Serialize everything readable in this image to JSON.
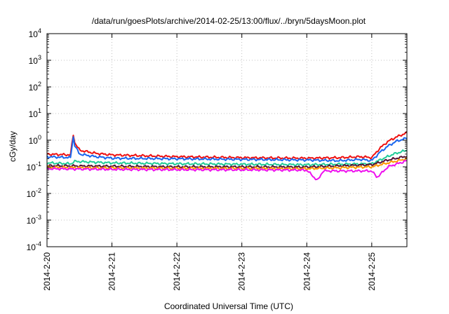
{
  "chart_data": {
    "type": "line",
    "title": "/data/run/goesPlots/archive/2014-02-25/13:00/flux/../bryn/5daysMoon.plot",
    "xlabel": "Coordinated Universal Time (UTC)",
    "ylabel": "cGy/day",
    "yscale": "log",
    "ylim": [
      0.0001,
      10000
    ],
    "yticks": [
      {
        "value": 0.0001,
        "base": "10",
        "exp": "-4"
      },
      {
        "value": 0.001,
        "base": "10",
        "exp": "-3"
      },
      {
        "value": 0.01,
        "base": "10",
        "exp": "-2"
      },
      {
        "value": 0.1,
        "base": "10",
        "exp": "-1"
      },
      {
        "value": 1,
        "base": "10",
        "exp": "0"
      },
      {
        "value": 10,
        "base": "10",
        "exp": "1"
      },
      {
        "value": 100,
        "base": "10",
        "exp": "2"
      },
      {
        "value": 1000,
        "base": "10",
        "exp": "3"
      },
      {
        "value": 10000,
        "base": "10",
        "exp": "4"
      }
    ],
    "xlim": [
      "2014-02-20T00:00",
      "2014-02-25T13:00"
    ],
    "xticks": [
      {
        "value": "2014-02-20T00:00",
        "label": "2014-2-20"
      },
      {
        "value": "2014-02-21T00:00",
        "label": "2014-2-21"
      },
      {
        "value": "2014-02-22T00:00",
        "label": "2014-2-22"
      },
      {
        "value": "2014-02-23T00:00",
        "label": "2014-2-23"
      },
      {
        "value": "2014-02-24T00:00",
        "label": "2014-2-24"
      },
      {
        "value": "2014-02-25T00:00",
        "label": "2014-2-25"
      }
    ],
    "grid": true,
    "series": [
      {
        "color": "#ee1111",
        "x": [
          "2014-02-20T00:00",
          "2014-02-20T09:00",
          "2014-02-20T09:30",
          "2014-02-20T10:00",
          "2014-02-20T12:00",
          "2014-02-20T18:00",
          "2014-02-21T00:00",
          "2014-02-22T00:00",
          "2014-02-23T00:00",
          "2014-02-24T00:00",
          "2014-02-24T12:00",
          "2014-02-24T20:00",
          "2014-02-25T00:00",
          "2014-02-25T03:00",
          "2014-02-25T06:00",
          "2014-02-25T09:00",
          "2014-02-25T13:00"
        ],
        "y": [
          0.3,
          0.28,
          2.6,
          0.9,
          0.42,
          0.32,
          0.28,
          0.24,
          0.22,
          0.21,
          0.22,
          0.24,
          0.22,
          0.5,
          0.9,
          1.3,
          1.9
        ]
      },
      {
        "color": "#1a66ee",
        "x": [
          "2014-02-20T00:00",
          "2014-02-20T09:00",
          "2014-02-20T09:30",
          "2014-02-20T10:00",
          "2014-02-20T12:00",
          "2014-02-20T18:00",
          "2014-02-21T00:00",
          "2014-02-22T00:00",
          "2014-02-23T00:00",
          "2014-02-24T00:00",
          "2014-02-24T12:00",
          "2014-02-24T20:00",
          "2014-02-25T00:00",
          "2014-02-25T03:00",
          "2014-02-25T06:00",
          "2014-02-25T09:00",
          "2014-02-25T13:00"
        ],
        "y": [
          0.24,
          0.22,
          2.2,
          0.7,
          0.3,
          0.24,
          0.21,
          0.2,
          0.19,
          0.18,
          0.17,
          0.19,
          0.17,
          0.35,
          0.6,
          0.9,
          1.2
        ]
      },
      {
        "color": "#22cc99",
        "x": [
          "2014-02-20T00:00",
          "2014-02-20T09:00",
          "2014-02-20T10:00",
          "2014-02-21T00:00",
          "2014-02-22T00:00",
          "2014-02-23T00:00",
          "2014-02-24T00:00",
          "2014-02-25T00:00",
          "2014-02-25T04:00",
          "2014-02-25T08:00",
          "2014-02-25T13:00"
        ],
        "y": [
          0.14,
          0.13,
          0.16,
          0.14,
          0.13,
          0.125,
          0.12,
          0.13,
          0.2,
          0.3,
          0.42
        ]
      },
      {
        "color": "#551133",
        "x": [
          "2014-02-20T00:00",
          "2014-02-21T00:00",
          "2014-02-22T00:00",
          "2014-02-23T00:00",
          "2014-02-24T00:00",
          "2014-02-25T00:00",
          "2014-02-25T06:00",
          "2014-02-25T13:00"
        ],
        "y": [
          0.11,
          0.105,
          0.1,
          0.1,
          0.098,
          0.12,
          0.18,
          0.25
        ]
      },
      {
        "color": "#ff9900",
        "x": [
          "2014-02-20T00:00",
          "2014-02-21T00:00",
          "2014-02-22T00:00",
          "2014-02-23T00:00",
          "2014-02-24T00:00",
          "2014-02-25T00:00",
          "2014-02-25T06:00",
          "2014-02-25T13:00"
        ],
        "y": [
          0.095,
          0.09,
          0.088,
          0.087,
          0.085,
          0.1,
          0.14,
          0.2
        ]
      },
      {
        "color": "#ee11ee",
        "x": [
          "2014-02-20T00:00",
          "2014-02-21T00:00",
          "2014-02-22T00:00",
          "2014-02-23T00:00",
          "2014-02-24T00:00",
          "2014-02-24T04:00",
          "2014-02-24T06:00",
          "2014-02-25T00:00",
          "2014-02-25T02:00",
          "2014-02-25T06:00",
          "2014-02-25T13:00"
        ],
        "y": [
          0.085,
          0.08,
          0.078,
          0.077,
          0.075,
          0.03,
          0.07,
          0.07,
          0.04,
          0.1,
          0.17
        ]
      }
    ]
  }
}
